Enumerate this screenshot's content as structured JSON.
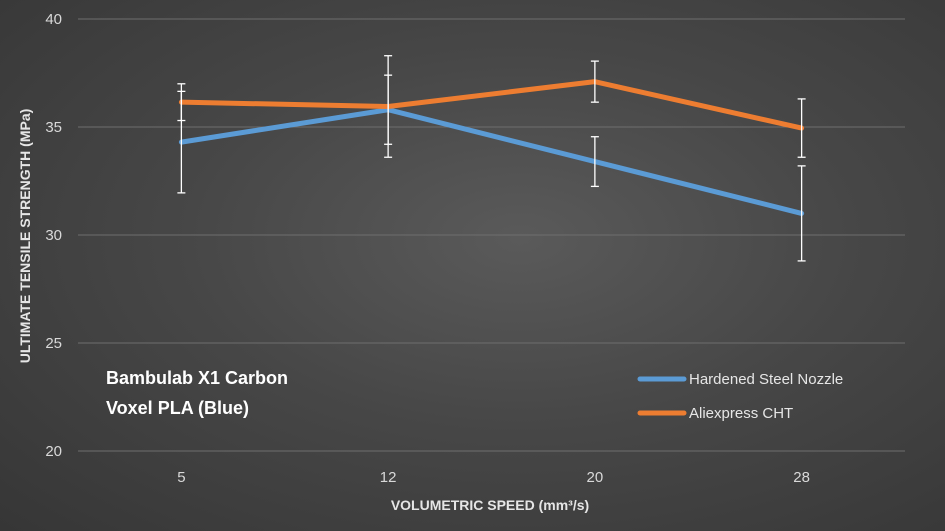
{
  "chart_data": {
    "type": "line",
    "title": "",
    "xlabel": "VOLUMETRIC SPEED (mm³/s)",
    "ylabel": "ULTIMATE TENSILE STRENGTH (MPa)",
    "ylim": [
      20,
      40
    ],
    "yticks": [
      "20",
      "25",
      "30",
      "35",
      "40"
    ],
    "categories": [
      "5",
      "12",
      "20",
      "28"
    ],
    "grid": true,
    "legend_position": "bottom-right",
    "annotation": [
      "Bambulab X1 Carbon",
      "Voxel PLA (Blue)"
    ],
    "series": [
      {
        "name": "Hardened Steel Nozzle",
        "color": "#5b9bd5",
        "values": [
          34.3,
          35.8,
          33.4,
          31.0
        ],
        "errors": [
          2.35,
          1.6,
          1.15,
          2.2
        ]
      },
      {
        "name": "Aliexpress CHT",
        "color": "#ed7d31",
        "values": [
          36.15,
          35.95,
          37.1,
          34.95
        ],
        "errors": [
          0.85,
          2.35,
          0.95,
          1.35
        ]
      }
    ]
  }
}
